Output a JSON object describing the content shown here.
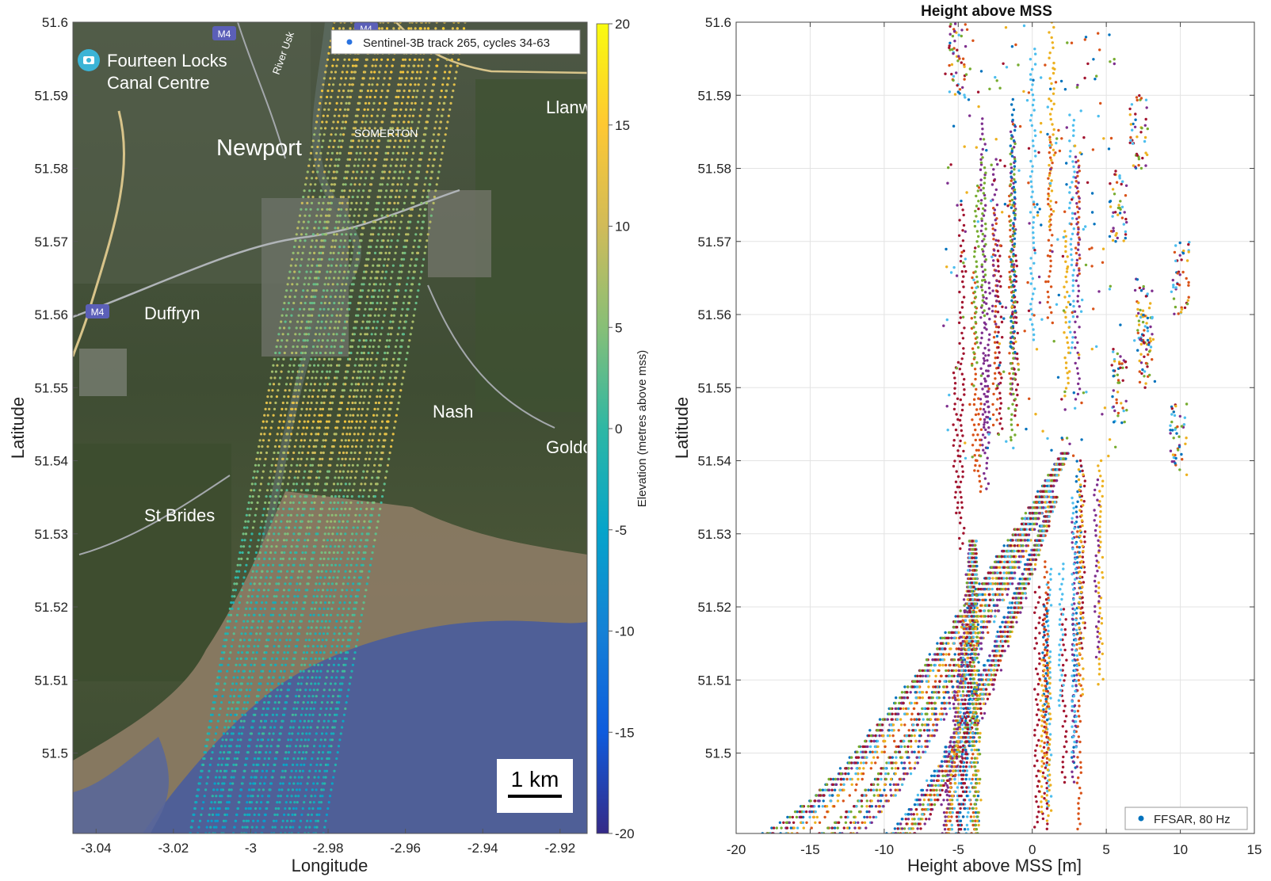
{
  "chart_data": [
    {
      "type": "scatter",
      "panel": "map",
      "title": "",
      "xlabel": "Longitude",
      "ylabel": "Latitude",
      "xlim": [
        -3.046,
        -2.913
      ],
      "ylim": [
        51.489,
        51.6
      ],
      "xticks": [
        "-3.04",
        "-3.02",
        "-3",
        "-2.98",
        "-2.96",
        "-2.94",
        "-2.92"
      ],
      "yticks": [
        "51.5",
        "51.51",
        "51.52",
        "51.53",
        "51.54",
        "51.55",
        "51.56",
        "51.57",
        "51.58",
        "51.59",
        "51.6"
      ],
      "legend": {
        "label": "Sentinel-3B track 265, cycles 34-63",
        "position": "top-right"
      },
      "colorbar": {
        "label": "Elevation (metres above mss)",
        "min": -20,
        "max": 20,
        "ticks": [
          "20",
          "15",
          "10",
          "5",
          "0",
          "-5",
          "-10",
          "-15",
          "-20"
        ],
        "colormap": "parula"
      },
      "scale_bar": "1 km",
      "place_labels": [
        "Fourteen Locks",
        "Canal Centre",
        "Newport",
        "SOMERTON",
        "Duffryn",
        "Nash",
        "St Brides",
        "Llanw",
        "Goldc",
        "M4",
        "M4",
        "M4",
        "River Usk"
      ],
      "tracks": {
        "count": 30,
        "lat_start": 51.489,
        "lat_end": 51.6,
        "lon_at_start_min": -3.016,
        "lon_at_start_max": -2.982,
        "lon_at_end_min": -2.978,
        "lon_at_end_max": -2.945,
        "elevation_profile": [
          {
            "lat": 51.489,
            "elevation": -4
          },
          {
            "lat": 51.5,
            "elevation": -2
          },
          {
            "lat": 51.52,
            "elevation": 0
          },
          {
            "lat": 51.535,
            "elevation": 4
          },
          {
            "lat": 51.545,
            "elevation": 12
          },
          {
            "lat": 51.555,
            "elevation": 5
          },
          {
            "lat": 51.57,
            "elevation": 6
          },
          {
            "lat": 51.58,
            "elevation": 8
          },
          {
            "lat": 51.59,
            "elevation": 11
          },
          {
            "lat": 51.6,
            "elevation": 13
          }
        ]
      }
    },
    {
      "type": "scatter",
      "panel": "profile",
      "title": "Height above MSS",
      "xlabel": "Height above MSS [m]",
      "ylabel": "Latitude",
      "xlim": [
        -20,
        15
      ],
      "ylim": [
        51.489,
        51.6
      ],
      "xticks": [
        "-20",
        "-15",
        "-10",
        "-5",
        "0",
        "5",
        "10",
        "15"
      ],
      "yticks": [
        "51.5",
        "51.51",
        "51.52",
        "51.53",
        "51.54",
        "51.55",
        "51.56",
        "51.57",
        "51.58",
        "51.59",
        "51.6"
      ],
      "grid": true,
      "legend": {
        "label": "FFSAR, 80 Hz",
        "position": "bottom-right"
      },
      "series_colors": [
        "#0072bd",
        "#d95319",
        "#edb120",
        "#7e2f8e",
        "#77ac30",
        "#4dbeee",
        "#a2142f"
      ],
      "bank_branches": [
        {
          "lat_bottom": 51.489,
          "h_bottom": -17,
          "lat_top": 51.541,
          "h_top": 2.2
        },
        {
          "lat_bottom": 51.489,
          "h_bottom": -13,
          "lat_top": 51.541,
          "h_top": 2.2
        },
        {
          "lat_bottom": 51.489,
          "h_bottom": -9,
          "lat_top": 51.535,
          "h_top": 1.5
        },
        {
          "lat_bottom": 51.489,
          "h_bottom": -5,
          "lat_top": 51.529,
          "h_top": -4
        }
      ],
      "vertical_clusters": [
        {
          "h": 2,
          "lat_min": 51.489,
          "lat_max": 51.541
        },
        {
          "h": 4,
          "lat_min": 51.489,
          "lat_max": 51.54
        },
        {
          "h": 1,
          "lat_min": 51.489,
          "lat_max": 51.53
        },
        {
          "h": -4,
          "lat_min": 51.52,
          "lat_max": 51.6
        },
        {
          "h": 2,
          "lat_min": 51.545,
          "lat_max": 51.6
        },
        {
          "h": -1,
          "lat_min": 51.54,
          "lat_max": 51.6
        },
        {
          "h": -3,
          "lat_min": 51.53,
          "lat_max": 51.59
        }
      ],
      "upper_features": [
        {
          "lat": 51.56,
          "h": 7.5
        },
        {
          "lat": 51.555,
          "h": 7.8
        },
        {
          "lat": 51.575,
          "h": 5.8
        },
        {
          "lat": 51.585,
          "h": 7.2
        },
        {
          "lat": 51.55,
          "h": 5.8
        },
        {
          "lat": 51.543,
          "h": 9.9
        },
        {
          "lat": 51.565,
          "h": 10
        },
        {
          "lat": 51.595,
          "h": -5
        }
      ]
    }
  ]
}
